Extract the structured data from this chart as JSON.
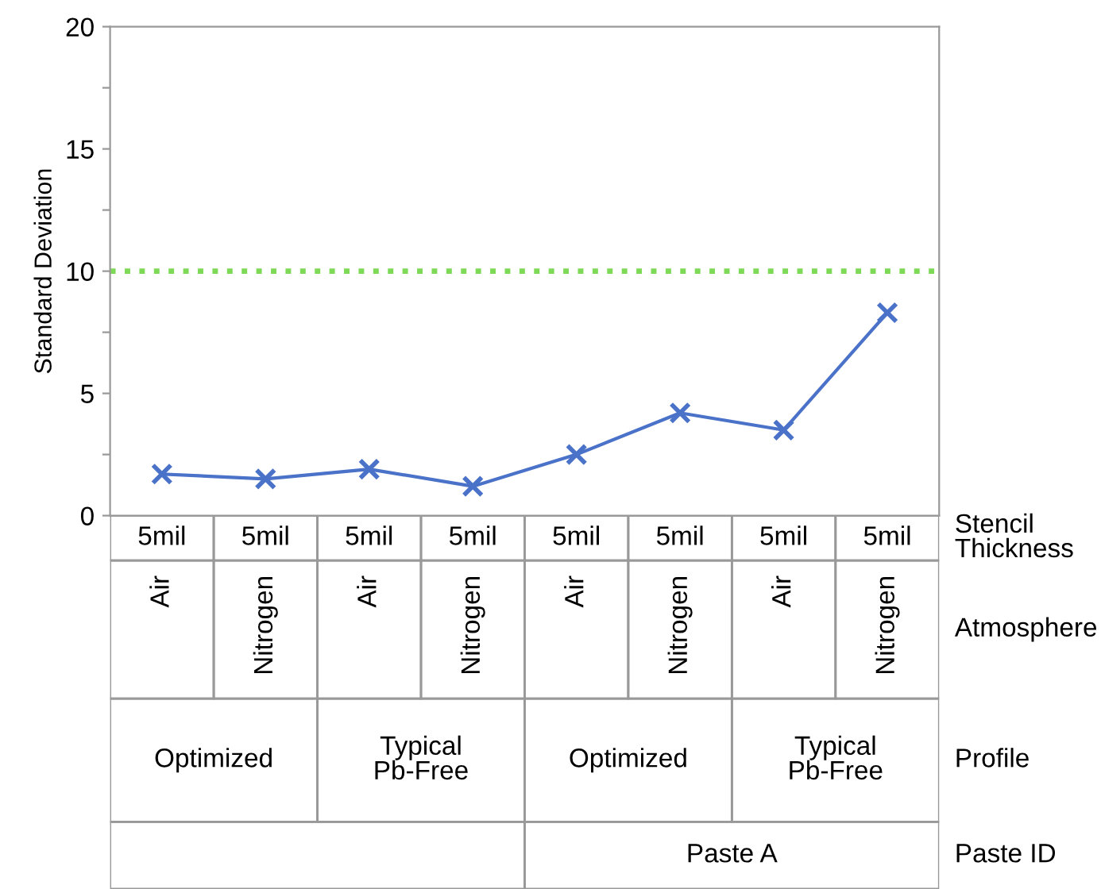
{
  "chart_data": {
    "type": "line",
    "ylabel": "Standard Deviation",
    "categories": [
      "5mil",
      "5mil",
      "5mil",
      "5mil",
      "5mil",
      "5mil",
      "5mil",
      "5mil"
    ],
    "series": [
      {
        "color": "#4a72c8",
        "values": [
          1.7,
          1.5,
          1.9,
          1.2,
          2.5,
          4.2,
          3.5,
          8.3
        ]
      }
    ],
    "marker": "cross",
    "line_style": "solid",
    "grid": false,
    "ylim": [
      0,
      20
    ],
    "yticks": [
      0,
      {
        "value": 2.5,
        "label": null
      },
      5,
      {
        "value": 7.5,
        "label": null
      },
      10,
      {
        "value": 12.5,
        "label": null
      },
      15,
      {
        "value": 17.5,
        "label": null
      },
      20
    ],
    "ref_lines": [
      {
        "axis": "y",
        "value": 10,
        "color": "#7ed957",
        "line_style": "dotted"
      }
    ],
    "annotations": [
      "Stencil\nThickness",
      "Atmosphere",
      "Profile",
      "Paste ID",
      "Air",
      "Nitrogen",
      "Air",
      "Nitrogen",
      "Air",
      "Nitrogen",
      "Air",
      "Nitrogen",
      "Optimized",
      "Typical\nPb-Free",
      "Optimized",
      "Typical\nPb-Free",
      "Paste A"
    ]
  }
}
